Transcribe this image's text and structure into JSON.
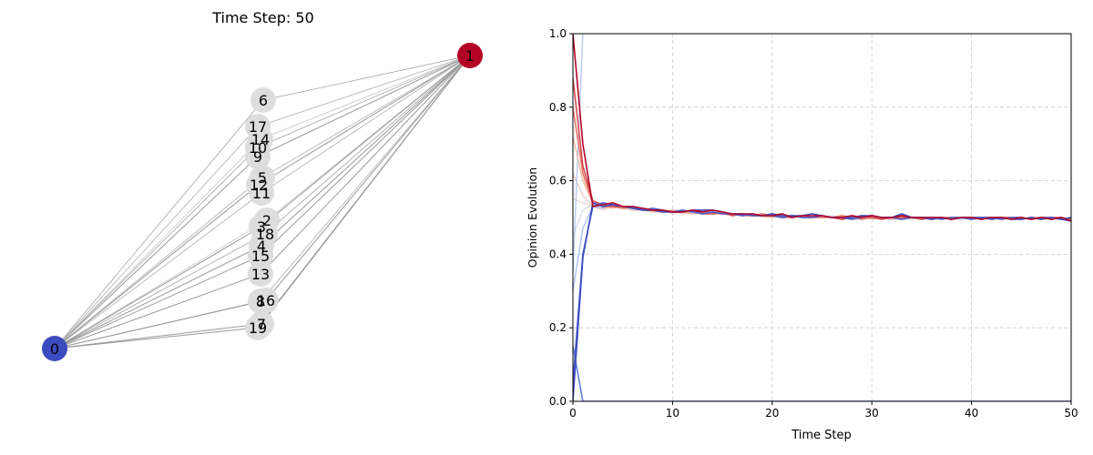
{
  "network_panel": {
    "title": "Time Step: 50",
    "node_labels": [
      "0",
      "1",
      "2",
      "3",
      "4",
      "5",
      "6",
      "7",
      "8",
      "9",
      "10",
      "11",
      "12",
      "13",
      "14",
      "15",
      "16",
      "17",
      "18",
      "19"
    ],
    "node_colors": {
      "low": "#3b4cc0",
      "high": "#b40426",
      "neutral": "#dddddd"
    }
  },
  "chart_data": {
    "type": "line",
    "xlabel": "Time Step",
    "ylabel": "Opinion Evolution",
    "xlim": [
      0,
      50
    ],
    "ylim": [
      0.0,
      1.0
    ],
    "xticks": [
      "0",
      "10",
      "20",
      "30",
      "40",
      "50"
    ],
    "yticks": [
      "0.0",
      "0.2",
      "0.4",
      "0.6",
      "0.8",
      "1.0"
    ],
    "grid": true,
    "colormap": "coolwarm",
    "series": [
      {
        "start": 0.0,
        "path": [
          0.0,
          0.39,
          0.54,
          0.53,
          0.535,
          0.53,
          0.525,
          0.52,
          0.52,
          0.515,
          0.515,
          0.515,
          0.52,
          0.52,
          0.52,
          0.515,
          0.51,
          0.51,
          0.505,
          0.505,
          0.51,
          0.505,
          0.505,
          0.505,
          0.51,
          0.505,
          0.5,
          0.5,
          0.5,
          0.505,
          0.505,
          0.5,
          0.5,
          0.51,
          0.5,
          0.5,
          0.495,
          0.5,
          0.495,
          0.5,
          0.5,
          0.5,
          0.495,
          0.5,
          0.495,
          0.495,
          0.5,
          0.495,
          0.5,
          0.495,
          0.5
        ]
      },
      {
        "start": 1.0,
        "path": [
          1.0,
          0.7,
          0.53,
          0.535,
          0.54,
          0.53,
          0.53,
          0.525,
          0.52,
          0.52,
          0.515,
          0.515,
          0.52,
          0.515,
          0.52,
          0.515,
          0.51,
          0.51,
          0.51,
          0.505,
          0.505,
          0.51,
          0.5,
          0.505,
          0.505,
          0.505,
          0.5,
          0.5,
          0.505,
          0.5,
          0.505,
          0.5,
          0.5,
          0.505,
          0.5,
          0.5,
          0.5,
          0.5,
          0.495,
          0.5,
          0.5,
          0.495,
          0.5,
          0.5,
          0.495,
          0.5,
          0.495,
          0.5,
          0.495,
          0.5,
          0.49
        ]
      },
      {
        "start": 0.15,
        "path": [
          0.15,
          0.0,
          0.0,
          0.0,
          0.0,
          0.0,
          0.0,
          0.0,
          0.0,
          0.0,
          0.0,
          0.0,
          0.0,
          0.0,
          0.0,
          0.0,
          0.0,
          0.0,
          0.0,
          0.0,
          0.0,
          0.0,
          0.0,
          0.0,
          0.0,
          0.0,
          0.0,
          0.0,
          0.0,
          0.0,
          0.0,
          0.0,
          0.0,
          0.0,
          0.0,
          0.0,
          0.0,
          0.0,
          0.0,
          0.0,
          0.0,
          0.0,
          0.0,
          0.0,
          0.0,
          0.0,
          0.0,
          0.0,
          0.0,
          0.0,
          0.0
        ]
      },
      {
        "start": 0.35,
        "path": [
          0.35,
          1.0
        ]
      },
      {
        "start": 0.55,
        "path": [
          0.55,
          0.54,
          0.53,
          0.52,
          0.53,
          0.525,
          0.52,
          0.52,
          0.515,
          0.52,
          0.51,
          0.515,
          0.515,
          0.52,
          0.51,
          0.51,
          0.51,
          0.505,
          0.51,
          0.5,
          0.505,
          0.5,
          0.505,
          0.5,
          0.5,
          0.505,
          0.5,
          0.495,
          0.5,
          0.5,
          0.5,
          0.495,
          0.5,
          0.5,
          0.495,
          0.5,
          0.5,
          0.495,
          0.5,
          0.5,
          0.495,
          0.5,
          0.495,
          0.5,
          0.5,
          0.495,
          0.5,
          0.5,
          0.495,
          0.5,
          0.495
        ]
      },
      {
        "start": 0.62,
        "path": [
          0.62,
          0.56,
          0.53,
          0.525,
          0.53,
          0.525,
          0.52,
          0.52,
          0.515,
          0.515,
          0.52,
          0.51,
          0.515,
          0.51,
          0.515,
          0.51,
          0.505,
          0.51,
          0.505,
          0.51,
          0.5,
          0.505,
          0.5,
          0.505,
          0.5,
          0.5,
          0.5,
          0.505,
          0.5,
          0.5,
          0.495,
          0.5,
          0.5,
          0.495,
          0.5,
          0.5,
          0.495,
          0.5,
          0.5,
          0.5,
          0.495,
          0.5,
          0.5,
          0.495,
          0.5,
          0.5,
          0.495,
          0.5,
          0.5,
          0.495,
          0.5
        ]
      },
      {
        "start": 0.72,
        "path": [
          0.72,
          0.6,
          0.54,
          0.53,
          0.525,
          0.53,
          0.525,
          0.52,
          0.52,
          0.515,
          0.52,
          0.515,
          0.51,
          0.515,
          0.51,
          0.51,
          0.505,
          0.51,
          0.505,
          0.505,
          0.5,
          0.505,
          0.505,
          0.5,
          0.5,
          0.505,
          0.5,
          0.5,
          0.495,
          0.5,
          0.505,
          0.5,
          0.495,
          0.5,
          0.5,
          0.495,
          0.5,
          0.5,
          0.495,
          0.5,
          0.5,
          0.5,
          0.495,
          0.5,
          0.5,
          0.495,
          0.5,
          0.5,
          0.5,
          0.495,
          0.5
        ]
      },
      {
        "start": 0.45,
        "path": [
          0.45,
          0.52,
          0.535,
          0.53,
          0.535,
          0.53,
          0.525,
          0.525,
          0.52,
          0.52,
          0.515,
          0.52,
          0.515,
          0.515,
          0.51,
          0.515,
          0.51,
          0.51,
          0.505,
          0.51,
          0.505,
          0.5,
          0.505,
          0.505,
          0.5,
          0.5,
          0.505,
          0.5,
          0.5,
          0.505,
          0.495,
          0.5,
          0.5,
          0.5,
          0.495,
          0.5,
          0.5,
          0.5,
          0.495,
          0.5,
          0.5,
          0.495,
          0.5,
          0.5,
          0.495,
          0.5,
          0.495,
          0.5,
          0.5,
          0.495,
          0.5
        ]
      },
      {
        "start": 0.8,
        "path": [
          0.8,
          0.62,
          0.54,
          0.53,
          0.53,
          0.525,
          0.53,
          0.52,
          0.52,
          0.515,
          0.515,
          0.52,
          0.515,
          0.51,
          0.515,
          0.51,
          0.51,
          0.505,
          0.505,
          0.51,
          0.505,
          0.5,
          0.5,
          0.505,
          0.5,
          0.5,
          0.5,
          0.505,
          0.5,
          0.495,
          0.5,
          0.5,
          0.5,
          0.495,
          0.5,
          0.5,
          0.495,
          0.5,
          0.5,
          0.5,
          0.495,
          0.5,
          0.5,
          0.495,
          0.5,
          0.5,
          0.495,
          0.5,
          0.5,
          0.495,
          0.5
        ]
      },
      {
        "start": 0.3,
        "path": [
          0.3,
          0.47,
          0.53,
          0.525,
          0.535,
          0.53,
          0.525,
          0.52,
          0.525,
          0.515,
          0.52,
          0.515,
          0.515,
          0.51,
          0.515,
          0.51,
          0.51,
          0.505,
          0.51,
          0.505,
          0.505,
          0.5,
          0.505,
          0.5,
          0.505,
          0.5,
          0.5,
          0.5,
          0.505,
          0.495,
          0.5,
          0.5,
          0.495,
          0.5,
          0.5,
          0.495,
          0.5,
          0.5,
          0.5,
          0.495,
          0.5,
          0.5,
          0.5,
          0.495,
          0.5,
          0.495,
          0.5,
          0.5,
          0.495,
          0.5,
          0.495
        ]
      },
      {
        "start": 0.88,
        "path": [
          0.88,
          0.64,
          0.545,
          0.535,
          0.53,
          0.53,
          0.525,
          0.525,
          0.52,
          0.52,
          0.515,
          0.515,
          0.52,
          0.51,
          0.51,
          0.515,
          0.505,
          0.51,
          0.505,
          0.505,
          0.51,
          0.5,
          0.505,
          0.5,
          0.5,
          0.505,
          0.5,
          0.495,
          0.5,
          0.505,
          0.5,
          0.495,
          0.5,
          0.5,
          0.5,
          0.495,
          0.5,
          0.5,
          0.495,
          0.5,
          0.5,
          0.495,
          0.5,
          0.5,
          0.5,
          0.495,
          0.5,
          0.495,
          0.5,
          0.5,
          0.495
        ]
      },
      {
        "start": 0.05,
        "path": [
          0.05,
          0.4,
          0.53,
          0.54,
          0.535,
          0.53,
          0.53,
          0.52,
          0.525,
          0.52,
          0.515,
          0.52,
          0.515,
          0.51,
          0.515,
          0.51,
          0.51,
          0.505,
          0.51,
          0.505,
          0.505,
          0.5,
          0.505,
          0.5,
          0.5,
          0.505,
          0.5,
          0.5,
          0.495,
          0.5,
          0.505,
          0.5,
          0.5,
          0.495,
          0.5,
          0.5,
          0.5,
          0.495,
          0.5,
          0.5,
          0.495,
          0.5,
          0.5,
          0.495,
          0.5,
          0.5,
          0.495,
          0.5,
          0.5,
          0.495,
          0.49
        ]
      }
    ]
  }
}
